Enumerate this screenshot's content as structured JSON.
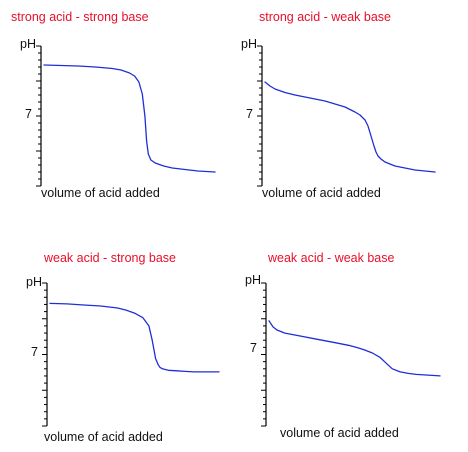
{
  "colors": {
    "title": "#e8102a",
    "curve": "#1f2fd6",
    "axis": "#000000",
    "text": "#111111"
  },
  "chart_data": [
    {
      "type": "line",
      "title": "strong acid - strong base",
      "ylabel": "pH",
      "xlabel": "volume of acid added",
      "y_tick_label": "7",
      "grid": false,
      "x": [
        0,
        2,
        4,
        6,
        8,
        9,
        10,
        10.6,
        11.1,
        11.5,
        11.8,
        12,
        12.2,
        12.5,
        13,
        14,
        15,
        16,
        17,
        18,
        19,
        20
      ],
      "y": [
        12.1,
        12.05,
        12.0,
        11.9,
        11.75,
        11.6,
        11.3,
        11.0,
        10.4,
        9.2,
        7.0,
        4.5,
        3.2,
        2.6,
        2.3,
        2.0,
        1.8,
        1.7,
        1.6,
        1.5,
        1.45,
        1.4
      ]
    },
    {
      "type": "line",
      "title": "strong acid - weak base",
      "ylabel": "pH",
      "xlabel": "volume of acid added",
      "y_tick_label": "7",
      "grid": false,
      "x": [
        0,
        0.5,
        1,
        2,
        3,
        4,
        5,
        6,
        7,
        8,
        9,
        9.5,
        10,
        10.3,
        10.6,
        10.9,
        11.1,
        11.3,
        11.6,
        12,
        13,
        14,
        15,
        16,
        17
      ],
      "y": [
        10.4,
        10.0,
        9.7,
        9.35,
        9.1,
        8.9,
        8.7,
        8.5,
        8.2,
        7.9,
        7.4,
        7.1,
        6.6,
        6.0,
        5.0,
        4.0,
        3.4,
        3.0,
        2.7,
        2.4,
        2.0,
        1.8,
        1.6,
        1.5,
        1.4
      ]
    },
    {
      "type": "line",
      "title": "weak acid - strong base",
      "ylabel": "pH",
      "xlabel": "volume of acid added",
      "y_tick_label": "7",
      "grid": false,
      "x": [
        0,
        2,
        4,
        6,
        8,
        9,
        10,
        11,
        11.7,
        12.1,
        12.5,
        12.8,
        13,
        13.3,
        14,
        15,
        16,
        17,
        18,
        19,
        20
      ],
      "y": [
        12.0,
        11.95,
        11.85,
        11.75,
        11.55,
        11.35,
        11.05,
        10.6,
        9.8,
        8.4,
        6.6,
        6.0,
        5.75,
        5.6,
        5.45,
        5.4,
        5.35,
        5.3,
        5.3,
        5.3,
        5.3
      ]
    },
    {
      "type": "line",
      "title": "weak acid - weak base",
      "ylabel": "pH",
      "xlabel": "volume of acid added",
      "y_tick_label": "7",
      "grid": false,
      "x": [
        0,
        0.5,
        1,
        2,
        4,
        6,
        8,
        10,
        11,
        12,
        13,
        14,
        14.8,
        15.5,
        16.5,
        17.5,
        18.5,
        19.5,
        20.5,
        21.5
      ],
      "y": [
        10.3,
        9.7,
        9.4,
        9.1,
        8.8,
        8.5,
        8.2,
        7.9,
        7.7,
        7.45,
        7.15,
        6.7,
        6.1,
        5.6,
        5.3,
        5.15,
        5.05,
        5.0,
        4.95,
        4.9
      ]
    }
  ]
}
